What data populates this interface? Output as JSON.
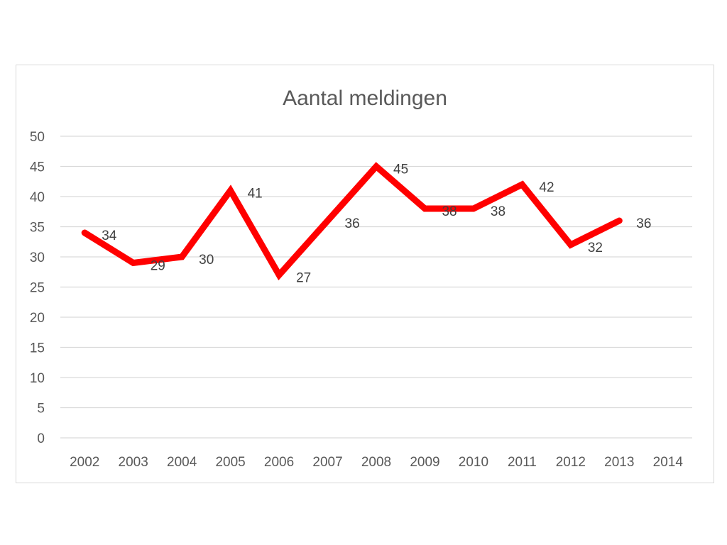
{
  "chart_data": {
    "type": "line",
    "title": "Aantal meldingen",
    "xlabel": "",
    "ylabel": "",
    "ylim": [
      0,
      50
    ],
    "yticks": [
      "0",
      "5",
      "10",
      "15",
      "20",
      "25",
      "30",
      "35",
      "40",
      "45",
      "50"
    ],
    "categories": [
      "2002",
      "2003",
      "2004",
      "2005",
      "2006",
      "2007",
      "2008",
      "2009",
      "2010",
      "2011",
      "2012",
      "2013",
      "2014"
    ],
    "series": [
      {
        "values": [
          34,
          29,
          30,
          41,
          27,
          36,
          45,
          38,
          38,
          42,
          32,
          36,
          null
        ],
        "labels": [
          "34",
          "29",
          "30",
          "41",
          "27",
          "36",
          "45",
          "38",
          "38",
          "42",
          "32",
          "36",
          ""
        ],
        "color": "#ff0000"
      }
    ],
    "grid": true,
    "legend": "none"
  }
}
